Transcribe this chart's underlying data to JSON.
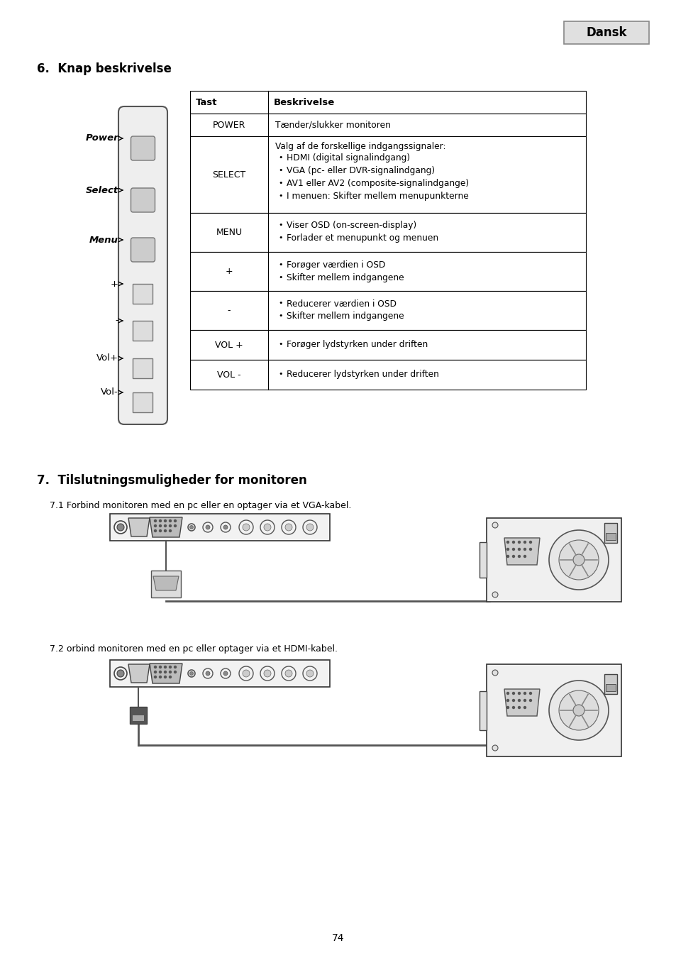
{
  "title_dansk": "Dansk",
  "section6_title": "6.  Knap beskrivelse",
  "section7_title": "7.  Tilslutningsmuligheder for monitoren",
  "subsection71": "7.1 Forbind monitoren med en pc eller en optager via et VGA-kabel.",
  "subsection72": "7.2 orbind monitoren med en pc eller optager via et HDMI-kabel.",
  "page_number": "74",
  "table_headers": [
    "Tast",
    "Beskrivelse"
  ],
  "table_rows": [
    {
      "key": "POWER",
      "desc": "Tænder/slukker monitoren",
      "bullets": []
    },
    {
      "key": "SELECT",
      "desc": "Valg af de forskellige indgangssignaler:",
      "bullets": [
        "HDMI (digital signalindgang)",
        "VGA (pc- eller DVR-signalindgang)",
        "AV1 eller AV2 (composite-signalindgange)",
        "I menuen: Skifter mellem menupunkterne"
      ]
    },
    {
      "key": "MENU",
      "desc": "",
      "bullets": [
        "Viser OSD (on-screen-display)",
        "Forlader et menupunkt og menuen"
      ]
    },
    {
      "key": "+",
      "desc": "",
      "bullets": [
        "Forøger værdien i OSD",
        "Skifter mellem indgangene"
      ]
    },
    {
      "key": "-",
      "desc": "",
      "bullets": [
        "Reducerer værdien i OSD",
        "Skifter mellem indgangene"
      ]
    },
    {
      "key": "VOL +",
      "desc": "",
      "bullets": [
        "Forøger lydstyrken under driften"
      ]
    },
    {
      "key": "VOL -",
      "desc": "",
      "bullets": [
        "Reducerer lydstyrken under driften"
      ]
    }
  ],
  "button_labels": [
    "Power",
    "Select",
    "Menu",
    "+",
    "-",
    "Vol+",
    "Vol-"
  ],
  "button_label_styles": [
    "bold_italic",
    "bold_italic",
    "bold_italic",
    "normal",
    "normal",
    "normal",
    "normal"
  ],
  "background_color": "#ffffff",
  "text_color": "#000000"
}
